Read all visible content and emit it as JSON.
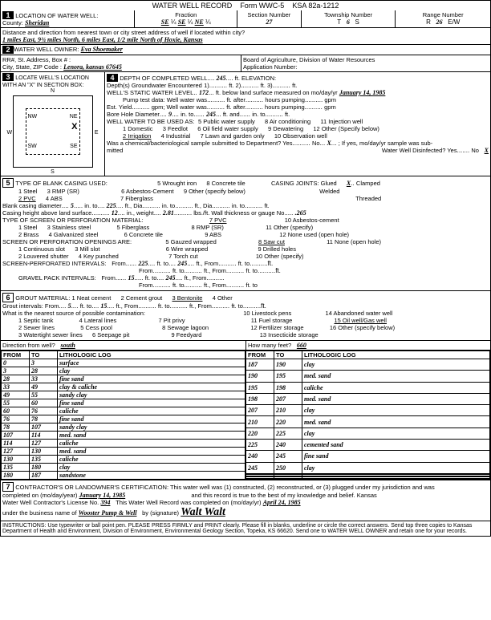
{
  "header": {
    "title": "WATER WELL RECORD",
    "form": "Form WWC-5",
    "statute": "KSA 82a-1212"
  },
  "loc": {
    "section_title": "LOCATION OF WATER WELL:",
    "county_label": "County:",
    "county": "Sheridan",
    "frac_label": "Fraction",
    "frac1": "SE",
    "frac2": "SE",
    "frac3": "NE",
    "sec_label": "Section Number",
    "sec": "27",
    "twp_label": "Township Number",
    "twp_t": "T",
    "twp_num": "6",
    "twp_s": "S",
    "rng_label": "Range Number",
    "rng_r": "R",
    "rng_num": "26",
    "rng_ew": "E/W",
    "dist_label": "Distance and direction from nearest town or city street address of well if located within city?",
    "dist": "1 miles East, 9¾ miles North, 6 miles East, 1/2 mile North of Hoxie, Kansas"
  },
  "owner": {
    "section_title": "WATER WELL OWNER:",
    "name": "Eva Shoemaker",
    "addr_label": "RR#, St. Address, Box # :",
    "city_label": "City, State, ZIP Code :",
    "city": "Lenora, kansas   67645",
    "board": "Board of Agriculture, Division of Water Resources",
    "app_label": "Application Number:"
  },
  "locate": {
    "section_title": "LOCATE WELL'S LOCATION WITH AN \"X\" IN SECTION BOX:",
    "dirs": {
      "n": "N",
      "s": "S",
      "e": "E",
      "w": "W",
      "nw": "NW",
      "ne": "NE",
      "sw": "SW",
      "se": "SE"
    }
  },
  "depth": {
    "section_title": "DEPTH OF COMPLETED WELL",
    "depth": "245",
    "elev_label": "ft. ELEVATION:",
    "gw_label": "Depth(s) Groundwater Encountered",
    "gw1_label": "1)",
    "gw2_label": "ft. 2)",
    "gw3_label": "ft. 3)",
    "gw3_end": "ft.",
    "static_label": "WELL'S STATIC WATER LEVEL",
    "static": "172",
    "static_after": "ft. below land surface measured on mo/day/yr",
    "static_date": "January 14, 1985",
    "pump_label": "Pump test data:",
    "well_water": "Well water was",
    "ft_after": "ft. after",
    "hours": "hours pumping",
    "gpm": "gpm",
    "est_label": "Est. Yield",
    "gpm_well": "gpm; Well water was",
    "bore_label": "Bore Hole Diameter",
    "nine": "9",
    "in_to": "in. to",
    "bore_to": "245",
    "ft_and": "ft. and",
    "in_to2": "in. to",
    "ft_end": "ft.",
    "use_label": "WELL WATER TO BE USED AS:",
    "use1": "1 Domestic",
    "use2": "2 Irrigation",
    "use3": "3 Feedlot",
    "use4": "4 Industrial",
    "use5": "5 Public water supply",
    "use6": "6 Oil field water supply",
    "use7": "7 Lawn and garden only",
    "use8": "8 Air conditioning",
    "use9": "9 Dewatering",
    "use10": "10 Observation well",
    "use11": "11 Injection well",
    "use12": "12 Other (Specify below)",
    "chem_label": "Was a chemical/bacteriological sample submitted to Department? Yes",
    "no": "No",
    "x": "X",
    "ifyes": "; If yes, mo/day/yr sample was sub-",
    "mitted": "mitted",
    "disinfect": "Water Well Disinfected? Yes",
    "no2": "No",
    "x2": "X"
  },
  "casing": {
    "section_title": "TYPE OF BLANK CASING USED:",
    "t1": "1 Steel",
    "t2": "2 PVC",
    "t3": "3 RMP (SR)",
    "t4": "4 ABS",
    "t5": "5 Wrought iron",
    "t6": "6 Asbestos-Cement",
    "t7": "7 Fiberglass",
    "t8": "8 Concrete tile",
    "t9": "9 Other (specify below)",
    "joints": "CASING JOINTS: Glued",
    "jx": "X",
    "clamped": "Clamped",
    "welded": "Welded",
    "threaded": "Threaded",
    "dia_label": "Blank casing diameter",
    "dia": "5",
    "in_to": "in. to",
    "to1": "225",
    "ft_dia": "ft., Dia",
    "ft_dia2": "in. to",
    "ft_end": "ft.",
    "height_label": "Casing height above land surface",
    "height": "12",
    "wt_label": "in., weight",
    "weight": "2.81",
    "lbs": "lbs./ft. Wall thickness or gauge No.",
    "gauge": ".265",
    "screen_title": "TYPE OF SCREEN OR PERFORATION MATERIAL:",
    "s7": "7 PVC",
    "s10": "10 Asbestos-cement",
    "s1": "1 Steel",
    "s2": "2 Brass",
    "s3": "3 Stainless steel",
    "s4": "4 Galvanized steel",
    "s5": "5 Fiberglass",
    "s6": "6 Concrete tile",
    "s8": "8 RMP (SR)",
    "s9": "9 ABS",
    "s11": "11 Other (specify)",
    "s12": "12 None used (open hole)",
    "open_title": "SCREEN OR PERFORATION OPENINGS ARE:",
    "o1": "1 Continuous slot",
    "o2": "2 Louvered shutter",
    "o3": "3 Mill slot",
    "o4": "4 Key punched",
    "o5": "5 Gauzed wrapped",
    "o6": "6 Wire wrapped",
    "o7": "7 Torch cut",
    "o8": "8 Saw cut",
    "o9": "9 Drilled holes",
    "o10": "10 Other (specify)",
    "o11": "11 None (open hole)",
    "spi_label": "SCREEN-PERFORATED INTERVALS:",
    "from": "From",
    "ft_to": "ft. to",
    "ft_from": "ft., From",
    "spi_f": "225",
    "spi_t": "245",
    "gpi_label": "GRAVEL PACK INTERVALS:",
    "gpi_f": "15",
    "gpi_t": "245"
  },
  "grout": {
    "section_title": "GROUT MATERIAL:",
    "g1": "1 Neat cement",
    "g2": "2 Cement grout",
    "g3": "3 Bentonite",
    "g4": "4 Other",
    "int_label": "Grout intervals: From",
    "gif": "5",
    "ft_to": "ft. to",
    "git": "15",
    "ft_from": "ft., From",
    "nearest": "What is the nearest source of possible contamination:",
    "c1": "1 Septic tank",
    "c2": "2 Sewer lines",
    "c3": "3 Watertight sewer lines",
    "c4": "4 Lateral lines",
    "c5": "5 Cess pool",
    "c6": "6 Seepage pit",
    "c7": "7 Pit privy",
    "c8": "8 Sewage lagoon",
    "c9": "9 Feedyard",
    "c10": "10 Livestock pens",
    "c11": "11 Fuel storage",
    "c12": "12 Fertilizer storage",
    "c13": "13 Insecticide storage",
    "c14": "14 Abandoned water well",
    "c15": "15 Oil well/Gas well",
    "c16": "16 Other (specify below)",
    "dir_label": "Direction from well?",
    "dir": "south",
    "feet_label": "How many feet?",
    "feet": "660"
  },
  "log": {
    "h_from": "FROM",
    "h_to": "TO",
    "h_lith": "LITHOLOGIC LOG",
    "left": [
      {
        "f": "0",
        "t": "3",
        "l": "surface"
      },
      {
        "f": "3",
        "t": "28",
        "l": "clay"
      },
      {
        "f": "28",
        "t": "33",
        "l": "fine sand"
      },
      {
        "f": "33",
        "t": "49",
        "l": "clay & caliche"
      },
      {
        "f": "49",
        "t": "55",
        "l": "sandy clay"
      },
      {
        "f": "55",
        "t": "60",
        "l": "fine sand"
      },
      {
        "f": "60",
        "t": "76",
        "l": "caliche"
      },
      {
        "f": "76",
        "t": "78",
        "l": "fine sand"
      },
      {
        "f": "78",
        "t": "107",
        "l": "sandy clay"
      },
      {
        "f": "107",
        "t": "114",
        "l": "med. sand"
      },
      {
        "f": "114",
        "t": "127",
        "l": "caliche"
      },
      {
        "f": "127",
        "t": "130",
        "l": "med. sand"
      },
      {
        "f": "130",
        "t": "135",
        "l": "caliche"
      },
      {
        "f": "135",
        "t": "180",
        "l": "clay"
      },
      {
        "f": "180",
        "t": "187",
        "l": "sandstone"
      }
    ],
    "right": [
      {
        "f": "187",
        "t": "190",
        "l": "clay"
      },
      {
        "f": "190",
        "t": "195",
        "l": "med. sand"
      },
      {
        "f": "195",
        "t": "198",
        "l": "caliche"
      },
      {
        "f": "198",
        "t": "207",
        "l": "med. sand"
      },
      {
        "f": "207",
        "t": "210",
        "l": "clay"
      },
      {
        "f": "210",
        "t": "220",
        "l": "med. sand"
      },
      {
        "f": "220",
        "t": "225",
        "l": "clay"
      },
      {
        "f": "225",
        "t": "240",
        "l": "cemented sand"
      },
      {
        "f": "240",
        "t": "245",
        "l": "fine sand"
      },
      {
        "f": "245",
        "t": "250",
        "l": "clay"
      },
      {
        "f": "",
        "t": "",
        "l": ""
      },
      {
        "f": "",
        "t": "",
        "l": ""
      },
      {
        "f": "",
        "t": "",
        "l": ""
      },
      {
        "f": "",
        "t": "",
        "l": ""
      },
      {
        "f": "",
        "t": "",
        "l": ""
      }
    ]
  },
  "cert": {
    "title": "CONTRACTOR'S OR LANDOWNER'S CERTIFICATION: This water well was (1) constructed, (2) reconstructed, or (3) plugged under my jurisdiction and was",
    "completed": "completed on (mo/day/year)",
    "date": "January 14, 1985",
    "record": "and this record is true to the best of my knowledge and belief. Kansas",
    "lic_label": "Water Well Contractor's License No.",
    "lic": "394",
    "rec2": "This Water Well Record was completed on (mo/day/yr)",
    "date2": "April 24, 1985",
    "under": "under the business name of",
    "biz": "Wooster Pump & Well",
    "by": "by (signature)",
    "sig": "Walt Walt"
  },
  "instr": "INSTRUCTIONS: Use typewriter or ball point pen. PLEASE PRESS  FIRMLY and PRINT clearly. Please fill in blanks, underline or circle the correct answers. Send top three copies to Kansas Department of Health and Environment, Division of Environment, Environmental Geology Section, Topeka, KS 66620. Send one to WATER WELL OWNER and retain one for your records."
}
